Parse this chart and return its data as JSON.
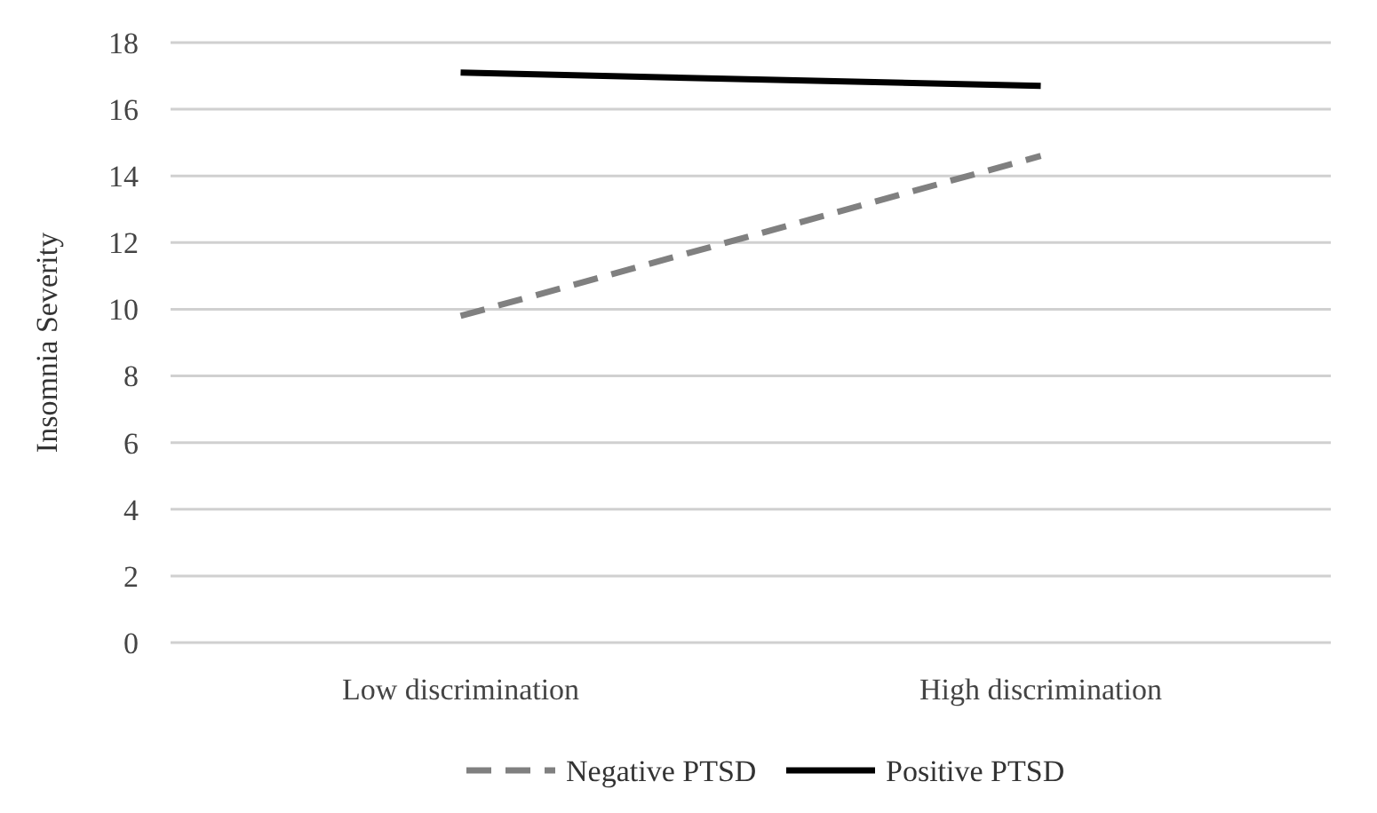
{
  "chart_data": {
    "type": "line",
    "ylabel": "Insomnia Severity",
    "categories": [
      "Low discrimination",
      "High discrimination"
    ],
    "series": [
      {
        "name": "Negative PTSD",
        "color": "#808080",
        "line_style": "dashed",
        "values": [
          9.8,
          14.6
        ]
      },
      {
        "name": "Positive PTSD",
        "color": "#000000",
        "line_style": "solid",
        "values": [
          17.1,
          16.7
        ]
      }
    ],
    "ylim": [
      0,
      18
    ],
    "yticks": [
      0,
      2,
      4,
      6,
      8,
      10,
      12,
      14,
      16,
      18
    ],
    "grid": "y",
    "legend": "bottom",
    "marker": "none"
  }
}
